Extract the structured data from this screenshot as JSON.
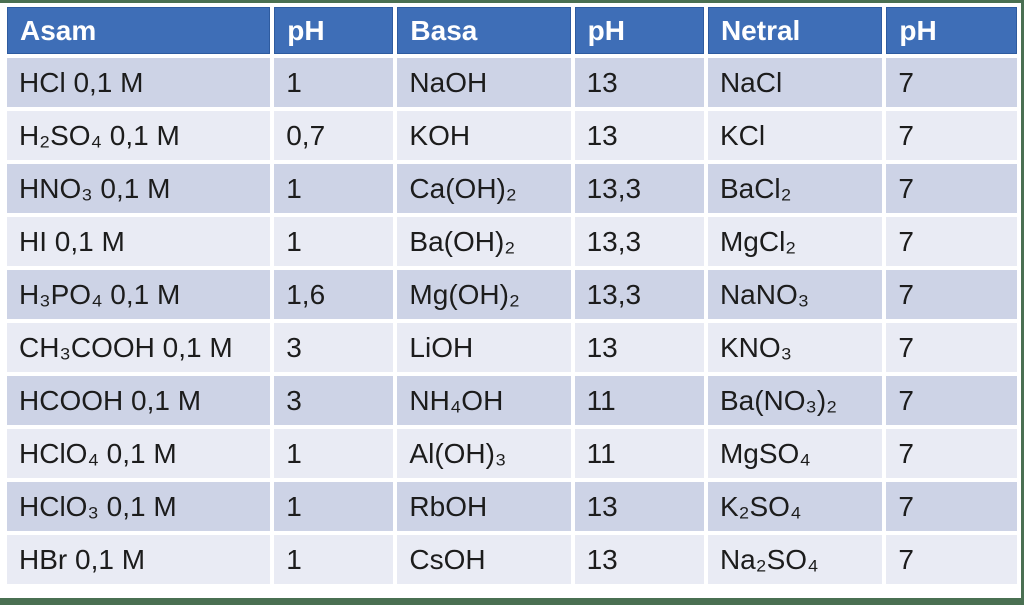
{
  "colors": {
    "header_bg": "#3E6EB7",
    "header_border": "#2E5B9F",
    "header_text": "#FFFFFF",
    "band_dark": "#CDD3E6",
    "band_light": "#E9EBF4",
    "frame_green": "#4A7052",
    "cell_text": "#1C1C1C",
    "gap": "#FFFFFF"
  },
  "chart_data": {
    "type": "table",
    "columns": [
      "Asam",
      "pH",
      "Basa",
      "pH",
      "Netral",
      "pH"
    ],
    "rows": [
      [
        "HCl 0,1 M",
        "1",
        "NaOH",
        "13",
        "NaCl",
        "7"
      ],
      [
        "H₂SO₄ 0,1 M",
        "0,7",
        "KOH",
        "13",
        "KCl",
        "7"
      ],
      [
        "HNO₃ 0,1 M",
        "1",
        "Ca(OH)₂",
        "13,3",
        "BaCl₂",
        "7"
      ],
      [
        "HI 0,1 M",
        "1",
        "Ba(OH)₂",
        "13,3",
        "MgCl₂",
        "7"
      ],
      [
        "H₃PO₄ 0,1 M",
        "1,6",
        "Mg(OH)₂",
        "13,3",
        "NaNO₃",
        "7"
      ],
      [
        "CH₃COOH 0,1 M",
        "3",
        "LiOH",
        "13",
        "KNO₃",
        "7"
      ],
      [
        "HCOOH 0,1 M",
        "3",
        "NH₄OH",
        "11",
        "Ba(NO₃)₂",
        "7"
      ],
      [
        "HClO₄ 0,1 M",
        "1",
        "Al(OH)₃",
        "11",
        "MgSO₄",
        "7"
      ],
      [
        "HClO₃ 0,1 M",
        "1",
        "RbOH",
        "13",
        "K₂SO₄",
        "7"
      ],
      [
        "HBr 0,1 M",
        "1",
        "CsOH",
        "13",
        "Na₂SO₄",
        "7"
      ]
    ]
  }
}
